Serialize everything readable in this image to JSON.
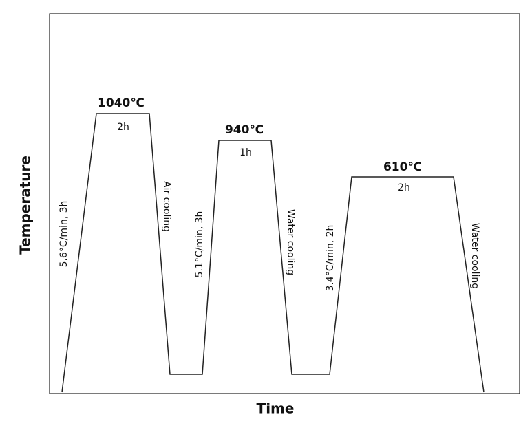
{
  "axes": {
    "y_label": "Temperature",
    "x_label": "Time"
  },
  "stages": [
    {
      "temperature": "1040℃",
      "hold": "2h"
    },
    {
      "temperature": "940℃",
      "hold": "1h"
    },
    {
      "temperature": "610℃",
      "hold": "2h"
    }
  ],
  "transitions": [
    {
      "heating": "5.6°C/min, 3h",
      "cooling": "Air cooling"
    },
    {
      "heating": "5.1°C/min, 3h",
      "cooling": "Water cooling"
    },
    {
      "heating": "3.4°C/min, 2h",
      "cooling": "Water cooling"
    }
  ]
}
